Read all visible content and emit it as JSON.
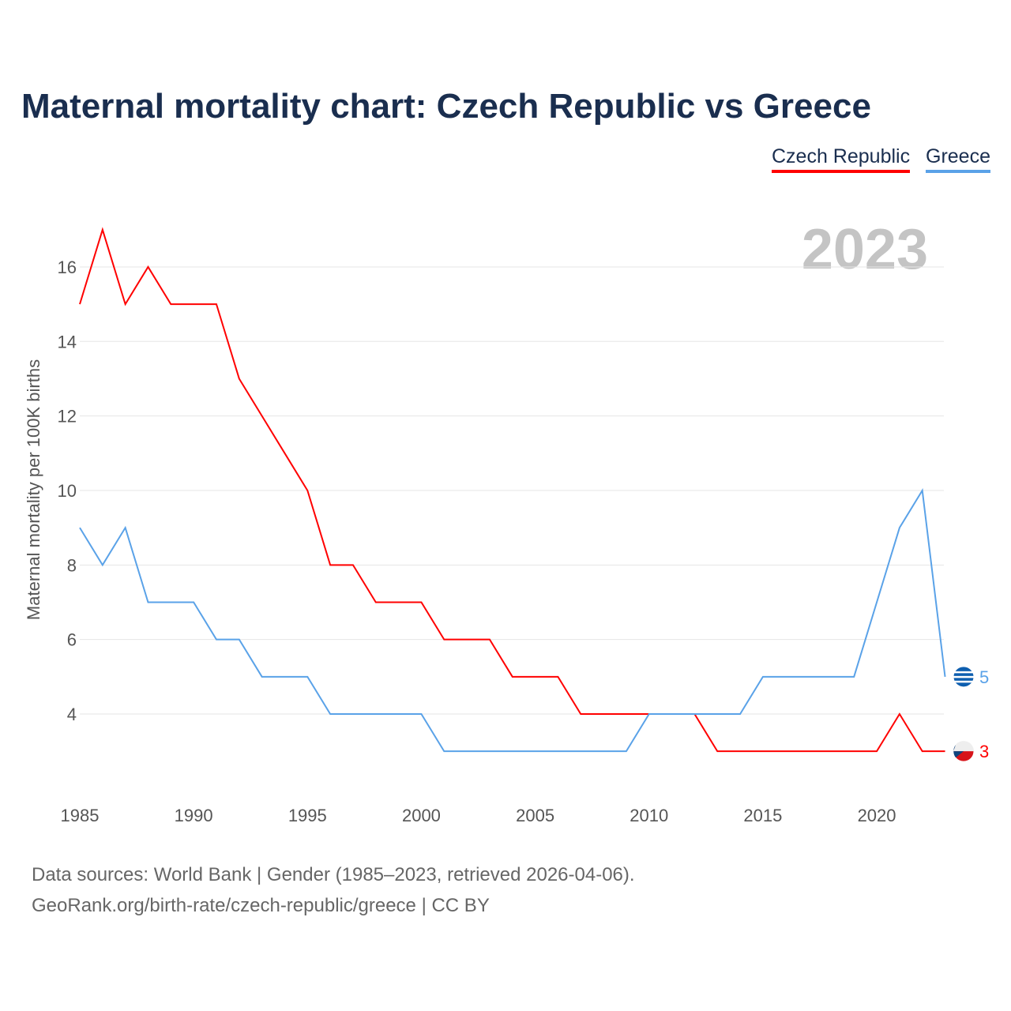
{
  "title": "Maternal mortality chart: Czech Republic vs Greece",
  "footer": {
    "line1": "Data sources: World Bank | Gender (1985–2023, retrieved 2026-04-06).",
    "line2": "GeoRank.org/birth-rate/czech-republic/greece | CC BY"
  },
  "chart_data": {
    "type": "line",
    "title": "Maternal mortality chart: Czech Republic vs Greece",
    "ylabel": "Maternal mortality per 100K births",
    "xlabel": "",
    "year_label": "2023",
    "x": [
      1985,
      1986,
      1987,
      1988,
      1989,
      1990,
      1991,
      1992,
      1993,
      1994,
      1995,
      1996,
      1997,
      1998,
      1999,
      2000,
      2001,
      2002,
      2003,
      2004,
      2005,
      2006,
      2007,
      2008,
      2009,
      2010,
      2011,
      2012,
      2013,
      2014,
      2015,
      2016,
      2017,
      2018,
      2019,
      2020,
      2021,
      2022,
      2023
    ],
    "xticks": [
      "1985",
      "1990",
      "1995",
      "2000",
      "2005",
      "2010",
      "2015",
      "2020"
    ],
    "yticks": [
      "4",
      "6",
      "8",
      "10",
      "12",
      "14",
      "16"
    ],
    "ylim": [
      2,
      17.5
    ],
    "xlim": [
      1985,
      2023
    ],
    "legend_position": "top-right",
    "series": [
      {
        "name": "Czech Republic",
        "color": "#ff0000",
        "end_label": "3",
        "values": [
          15,
          17,
          15,
          16,
          15,
          15,
          15,
          13,
          12,
          11,
          10,
          8,
          8,
          7,
          7,
          7,
          6,
          6,
          6,
          5,
          5,
          5,
          4,
          4,
          4,
          4,
          4,
          4,
          3,
          3,
          3,
          3,
          3,
          3,
          3,
          3,
          4,
          3,
          3
        ]
      },
      {
        "name": "Greece",
        "color": "#5aa2e8",
        "end_label": "5",
        "values": [
          9,
          8,
          9,
          7,
          7,
          7,
          6,
          6,
          5,
          5,
          5,
          4,
          4,
          4,
          4,
          4,
          3,
          3,
          3,
          3,
          3,
          3,
          3,
          3,
          3,
          4,
          4,
          4,
          4,
          4,
          5,
          5,
          5,
          5,
          5,
          7,
          9,
          10,
          5
        ]
      }
    ]
  }
}
